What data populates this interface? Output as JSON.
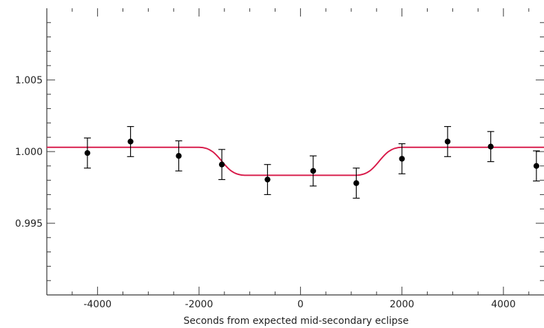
{
  "chart_data": {
    "type": "scatter",
    "title": "",
    "xlabel": "Seconds from expected mid-secondary eclipse",
    "ylabel": "",
    "xlim": [
      -5000,
      4800
    ],
    "ylim": [
      0.99,
      1.01
    ],
    "x_ticks": [
      -4000,
      -2000,
      0,
      2000,
      4000
    ],
    "x_tick_labels": [
      "-4000",
      "-2000",
      "0",
      "2000",
      "4000"
    ],
    "y_ticks": [
      0.995,
      1.0,
      1.005
    ],
    "y_tick_labels": [
      "0.995",
      "1.000",
      "1.005"
    ],
    "grid": false,
    "colors": {
      "model": "#d81b4a",
      "points": "#000000",
      "axes": "#333333"
    },
    "series": [
      {
        "type": "scatter_errorbar",
        "x": [
          -4200,
          -3350,
          -2400,
          -1550,
          -650,
          250,
          1100,
          2000,
          2900,
          3750,
          4650
        ],
        "y": [
          0.9999,
          1.0007,
          0.9997,
          0.9991,
          0.99805,
          0.99865,
          0.9978,
          0.9995,
          1.0007,
          1.00035,
          0.999
        ],
        "yerr": [
          0.00105,
          0.00105,
          0.00105,
          0.00105,
          0.00105,
          0.00105,
          0.00105,
          0.00105,
          0.00105,
          0.00105,
          0.00105
        ]
      },
      {
        "type": "line",
        "x": [
          -5000,
          -2000,
          -1100,
          1100,
          2000,
          4800
        ],
        "y": [
          1.0003,
          1.0003,
          0.99835,
          0.99835,
          1.0003,
          1.0003
        ]
      }
    ]
  }
}
